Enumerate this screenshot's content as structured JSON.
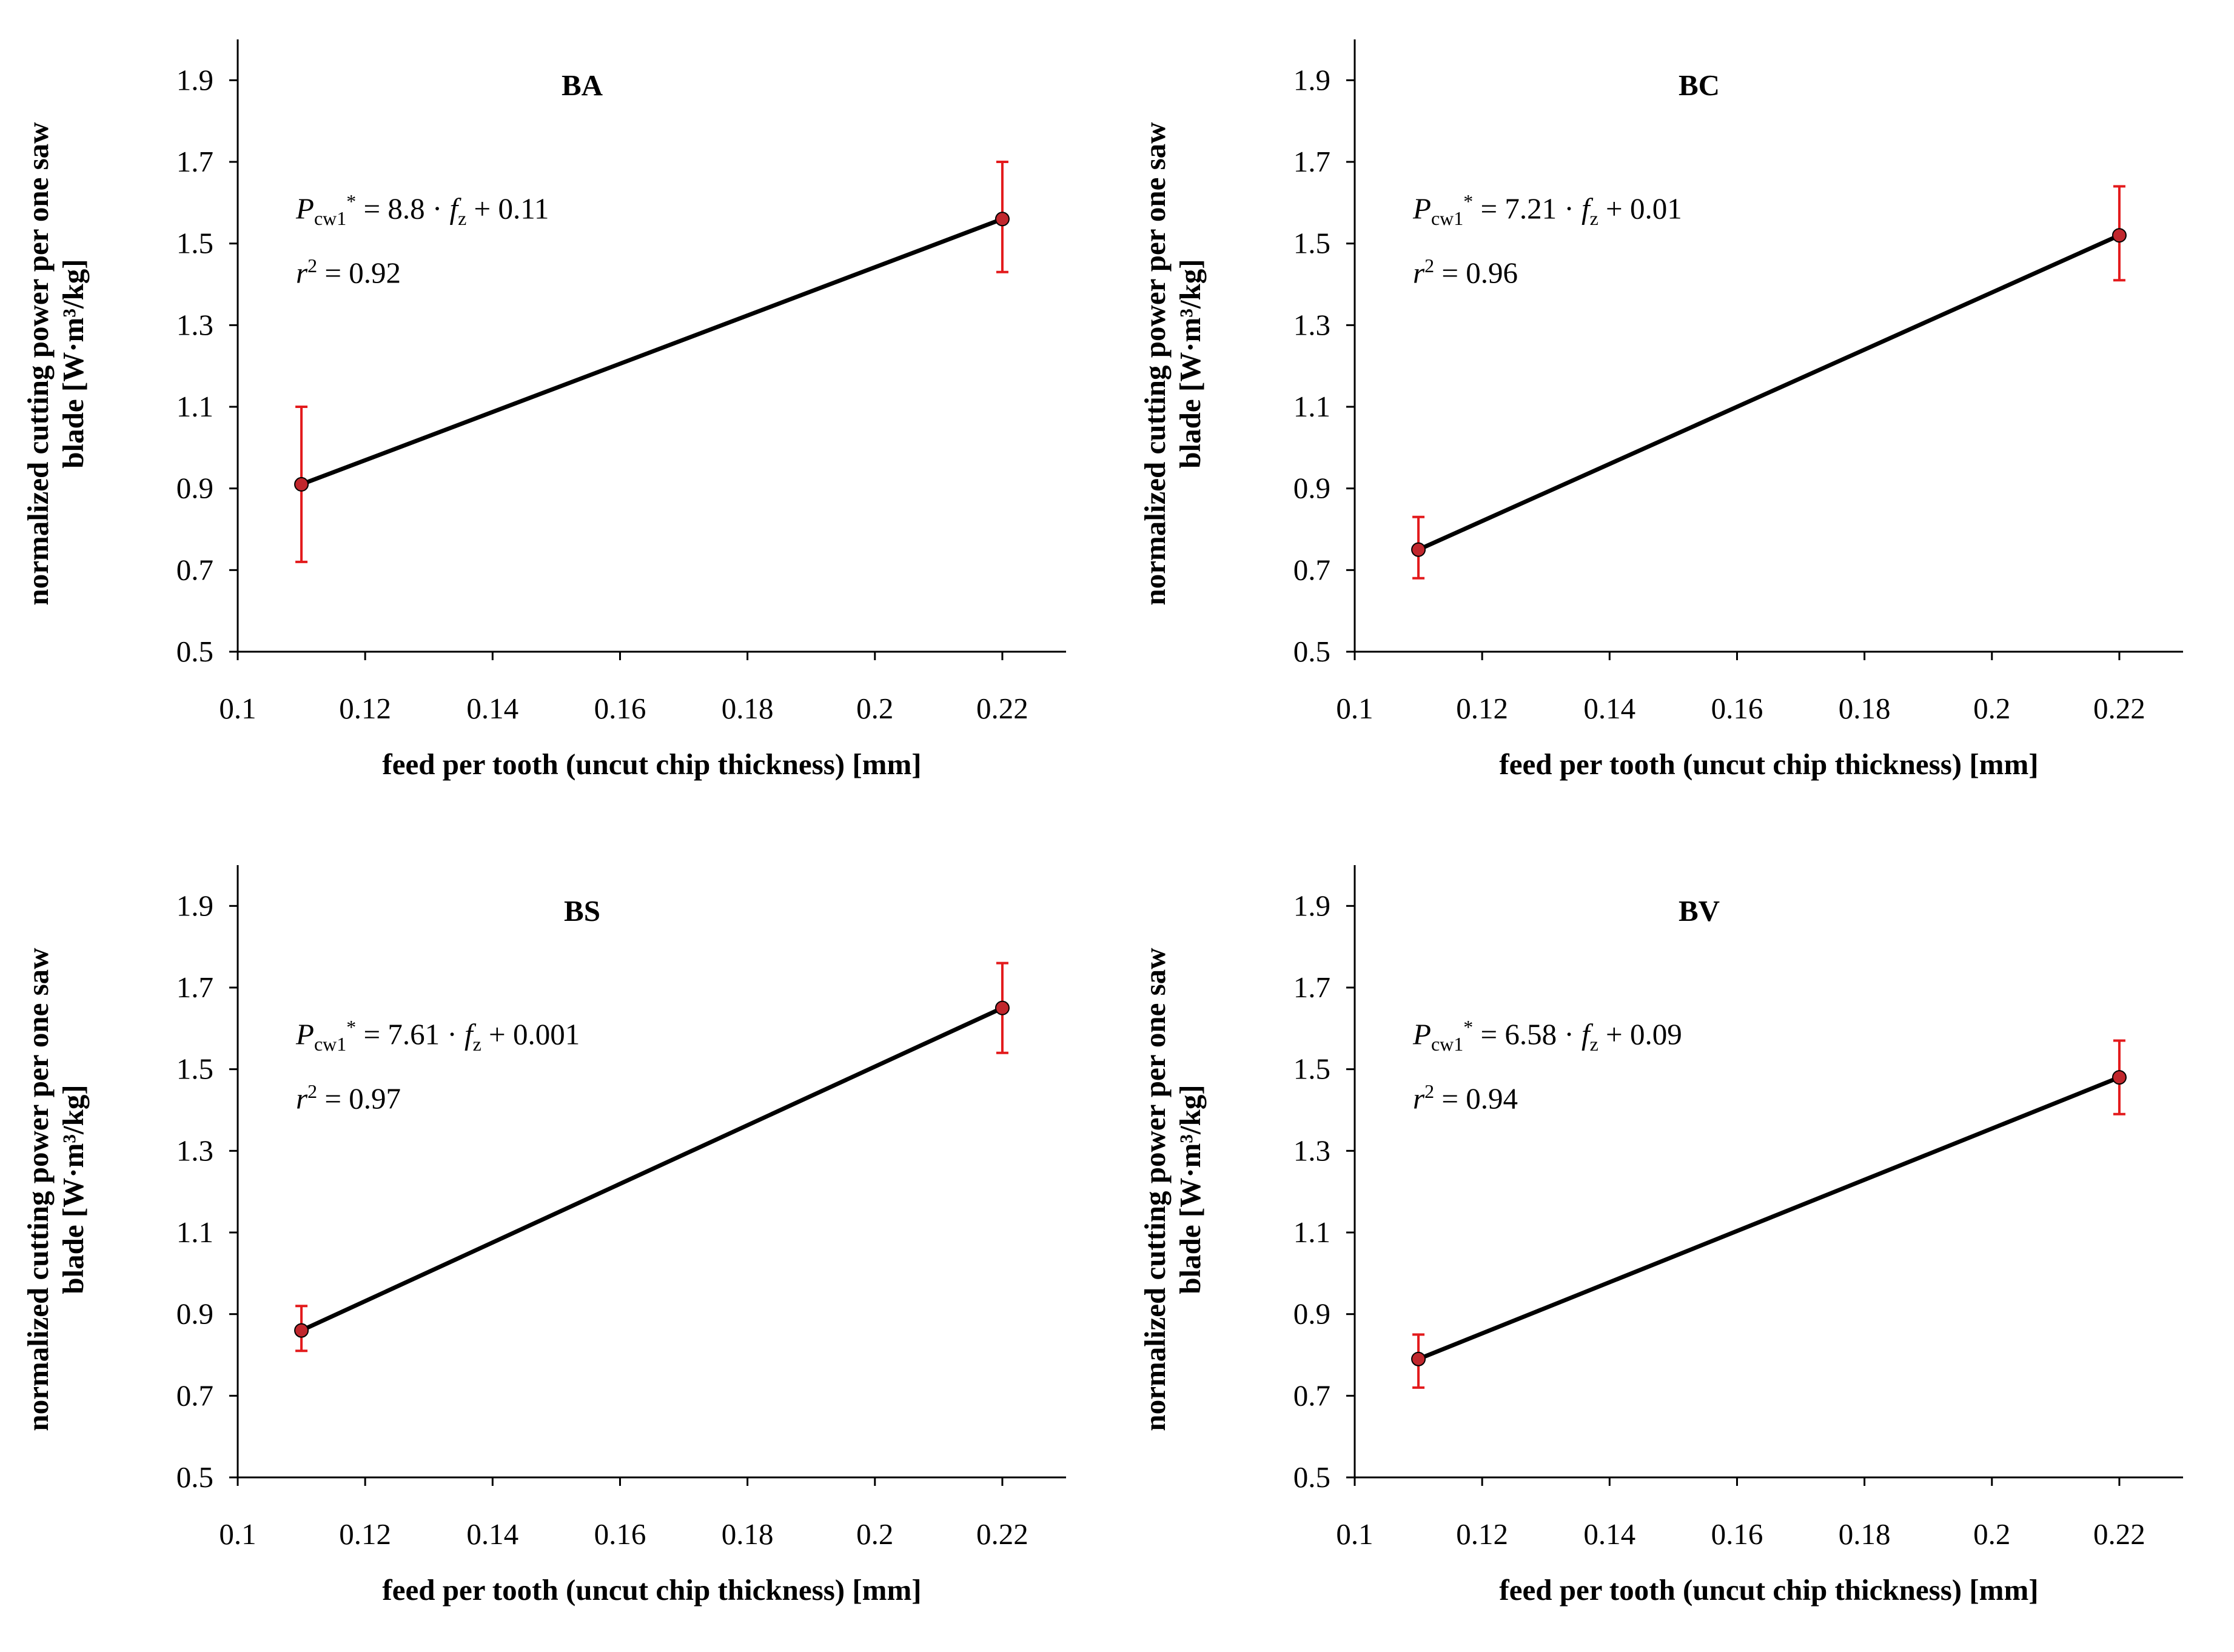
{
  "colors": {
    "line": "#000000",
    "error": "#e31a1c",
    "marker": "#c1272d",
    "axis": "#000000"
  },
  "labels": {
    "ylabel_line1": "normalized cutting power per one saw",
    "ylabel_line2": "blade [W·m³/kg]",
    "xlabel": "feed per tooth (uncut chip thickness) [mm]",
    "eq_symbol": "P",
    "eq_sub": "cw1",
    "eq_star": "*",
    "eq_fz": "f",
    "eq_fz_sub": "z",
    "r_symbol": "r",
    "r_sup": "2"
  },
  "chart_data": [
    {
      "type": "line",
      "title": "BA",
      "x": [
        0.11,
        0.22
      ],
      "values": [
        0.91,
        1.56
      ],
      "err_low": [
        0.72,
        1.43
      ],
      "err_high": [
        1.1,
        1.7
      ],
      "eq_coef": "8.8",
      "eq_const": "0.11",
      "r2": "0.92",
      "xlim": [
        0.1,
        0.23
      ],
      "ylim": [
        0.5,
        2.0
      ],
      "xticks": [
        0.1,
        0.12,
        0.14,
        0.16,
        0.18,
        0.2,
        0.22
      ],
      "xtick_labels": [
        "0.1",
        "0.12",
        "0.14",
        "0.16",
        "0.18",
        "0.2",
        "0.22"
      ],
      "yticks": [
        0.5,
        0.7,
        0.9,
        1.1,
        1.3,
        1.5,
        1.7,
        1.9
      ],
      "ytick_labels": [
        "0.5",
        "0.7",
        "0.9",
        "1.1",
        "1.3",
        "1.5",
        "1.7",
        "1.9"
      ]
    },
    {
      "type": "line",
      "title": "BC",
      "x": [
        0.11,
        0.22
      ],
      "values": [
        0.75,
        1.52
      ],
      "err_low": [
        0.68,
        1.41
      ],
      "err_high": [
        0.83,
        1.64
      ],
      "eq_coef": "7.21",
      "eq_const": "0.01",
      "r2": "0.96",
      "xlim": [
        0.1,
        0.23
      ],
      "ylim": [
        0.5,
        2.0
      ],
      "xticks": [
        0.1,
        0.12,
        0.14,
        0.16,
        0.18,
        0.2,
        0.22
      ],
      "xtick_labels": [
        "0.1",
        "0.12",
        "0.14",
        "0.16",
        "0.18",
        "0.2",
        "0.22"
      ],
      "yticks": [
        0.5,
        0.7,
        0.9,
        1.1,
        1.3,
        1.5,
        1.7,
        1.9
      ],
      "ytick_labels": [
        "0.5",
        "0.7",
        "0.9",
        "1.1",
        "1.3",
        "1.5",
        "1.7",
        "1.9"
      ]
    },
    {
      "type": "line",
      "title": "BS",
      "x": [
        0.11,
        0.22
      ],
      "values": [
        0.86,
        1.65
      ],
      "err_low": [
        0.81,
        1.54
      ],
      "err_high": [
        0.92,
        1.76
      ],
      "eq_coef": "7.61",
      "eq_const": "0.001",
      "r2": "0.97",
      "xlim": [
        0.1,
        0.23
      ],
      "ylim": [
        0.5,
        2.0
      ],
      "xticks": [
        0.1,
        0.12,
        0.14,
        0.16,
        0.18,
        0.2,
        0.22
      ],
      "xtick_labels": [
        "0.1",
        "0.12",
        "0.14",
        "0.16",
        "0.18",
        "0.2",
        "0.22"
      ],
      "yticks": [
        0.5,
        0.7,
        0.9,
        1.1,
        1.3,
        1.5,
        1.7,
        1.9
      ],
      "ytick_labels": [
        "0.5",
        "0.7",
        "0.9",
        "1.1",
        "1.3",
        "1.5",
        "1.7",
        "1.9"
      ]
    },
    {
      "type": "line",
      "title": "BV",
      "x": [
        0.11,
        0.22
      ],
      "values": [
        0.79,
        1.48
      ],
      "err_low": [
        0.72,
        1.39
      ],
      "err_high": [
        0.85,
        1.57
      ],
      "eq_coef": "6.58",
      "eq_const": "0.09",
      "r2": "0.94",
      "xlim": [
        0.1,
        0.23
      ],
      "ylim": [
        0.5,
        2.0
      ],
      "xticks": [
        0.1,
        0.12,
        0.14,
        0.16,
        0.18,
        0.2,
        0.22
      ],
      "xtick_labels": [
        "0.1",
        "0.12",
        "0.14",
        "0.16",
        "0.18",
        "0.2",
        "0.22"
      ],
      "yticks": [
        0.5,
        0.7,
        0.9,
        1.1,
        1.3,
        1.5,
        1.7,
        1.9
      ],
      "ytick_labels": [
        "0.5",
        "0.7",
        "0.9",
        "1.1",
        "1.3",
        "1.5",
        "1.7",
        "1.9"
      ]
    }
  ]
}
